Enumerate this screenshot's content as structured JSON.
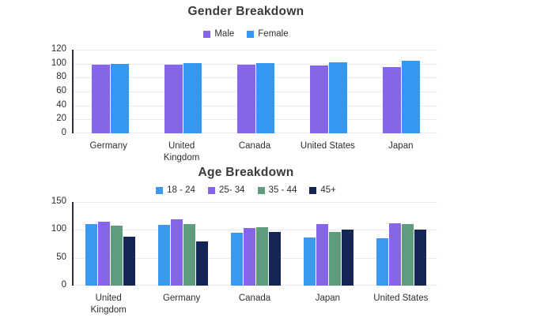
{
  "theme": {
    "background": "#ffffff",
    "title_color": "#3a3a3a",
    "text_color": "#2e2e2e",
    "axis_color": "#2e2e44",
    "grid_color": "#ececec"
  },
  "chart_data": [
    {
      "type": "bar",
      "title": "Gender Breakdown",
      "categories": [
        "Germany",
        "United\nKingdom",
        "Canada",
        "United States",
        "Japan"
      ],
      "series": [
        {
          "name": "Male",
          "color": "#8565e8",
          "values": [
            99,
            98,
            98,
            97,
            95
          ]
        },
        {
          "name": "Female",
          "color": "#3498f0",
          "values": [
            100,
            101,
            101,
            102,
            104
          ]
        }
      ],
      "xlabel": "",
      "ylabel": "",
      "ylim": [
        0,
        120
      ],
      "yticks": [
        0,
        20,
        40,
        60,
        80,
        100,
        120
      ],
      "grid": true,
      "legend_position": "top"
    },
    {
      "type": "bar",
      "title": "Age Breakdown",
      "categories": [
        "United\nKingdom",
        "Germany",
        "Canada",
        "Japan",
        "United States"
      ],
      "series": [
        {
          "name": "18 - 24",
          "color": "#3b9af0",
          "values": [
            110,
            109,
            95,
            86,
            85
          ]
        },
        {
          "name": "25- 34",
          "color": "#8565e8",
          "values": [
            115,
            119,
            104,
            111,
            112
          ]
        },
        {
          "name": "35 - 44",
          "color": "#5f9c7e",
          "values": [
            108,
            110,
            105,
            96,
            110
          ]
        },
        {
          "name": "45+",
          "color": "#152656",
          "values": [
            88,
            79,
            97,
            101,
            100
          ]
        }
      ],
      "xlabel": "",
      "ylabel": "",
      "ylim": [
        0,
        150
      ],
      "yticks": [
        0,
        50,
        100,
        150
      ],
      "grid": true,
      "legend_position": "top"
    }
  ]
}
